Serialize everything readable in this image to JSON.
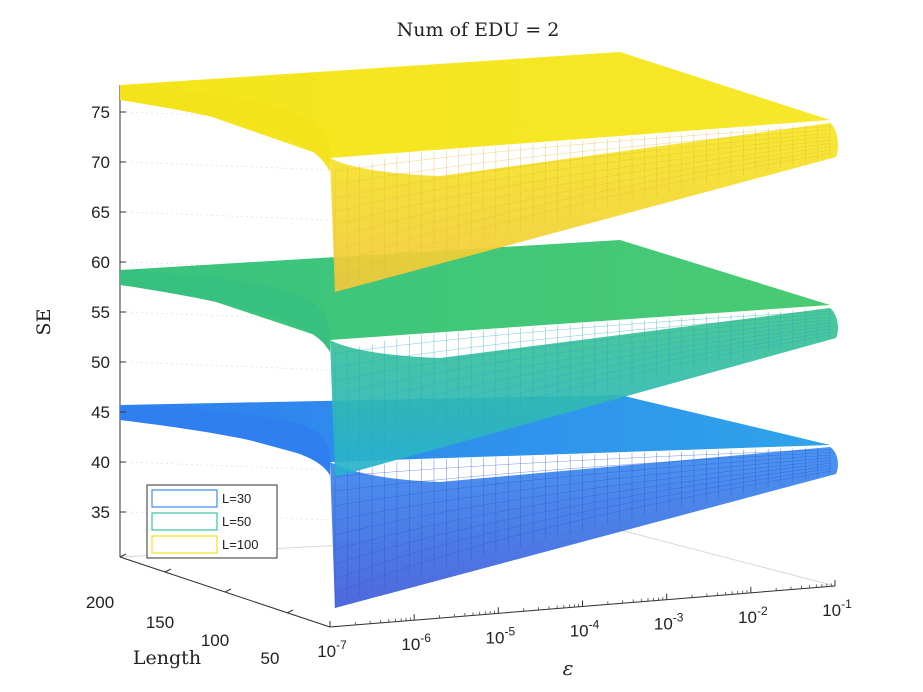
{
  "chart_data": {
    "type": "surface",
    "title": "Num of EDU = 2",
    "xlabel": "ε",
    "ylabel": "Length",
    "zlabel": "SE",
    "epsilon_ticks": [
      "10-7",
      "10-6",
      "10-5",
      "10-4",
      "10-3",
      "10-2",
      "10-1"
    ],
    "epsilon_exponents": [
      -7,
      -6,
      -5,
      -4,
      -3,
      -2,
      -1
    ],
    "length_ticks": [
      200,
      150,
      100,
      50
    ],
    "se_ticks": [
      35,
      40,
      45,
      50,
      55,
      60,
      65,
      70,
      75
    ],
    "zlim": [
      30,
      78
    ],
    "legend": {
      "position": "bottom-left",
      "entries": [
        "L=30",
        "L=50",
        "L=100"
      ]
    },
    "series": [
      {
        "name": "L=30",
        "color": "#3b7fe8",
        "values": {
          "se_at_length_max_eps_min": 45.3,
          "se_at_length_min_eps_min": 30.5,
          "se_at_length_max_eps_max": 43.5,
          "se_at_length_min_eps_max": 36.5
        }
      },
      {
        "name": "L=50",
        "color": "#33c48a",
        "values": {
          "se_at_length_max_eps_min": 58.8,
          "se_at_length_min_eps_min": 41.5,
          "se_at_length_max_eps_max": 57.0,
          "se_at_length_min_eps_max": 50.5
        }
      },
      {
        "name": "L=100",
        "color": "#f2e61e",
        "values": {
          "se_at_length_max_eps_min": 77.8,
          "se_at_length_min_eps_min": 57.0,
          "se_at_length_max_eps_max": 76.0,
          "se_at_length_min_eps_max": 69.0
        }
      }
    ]
  }
}
